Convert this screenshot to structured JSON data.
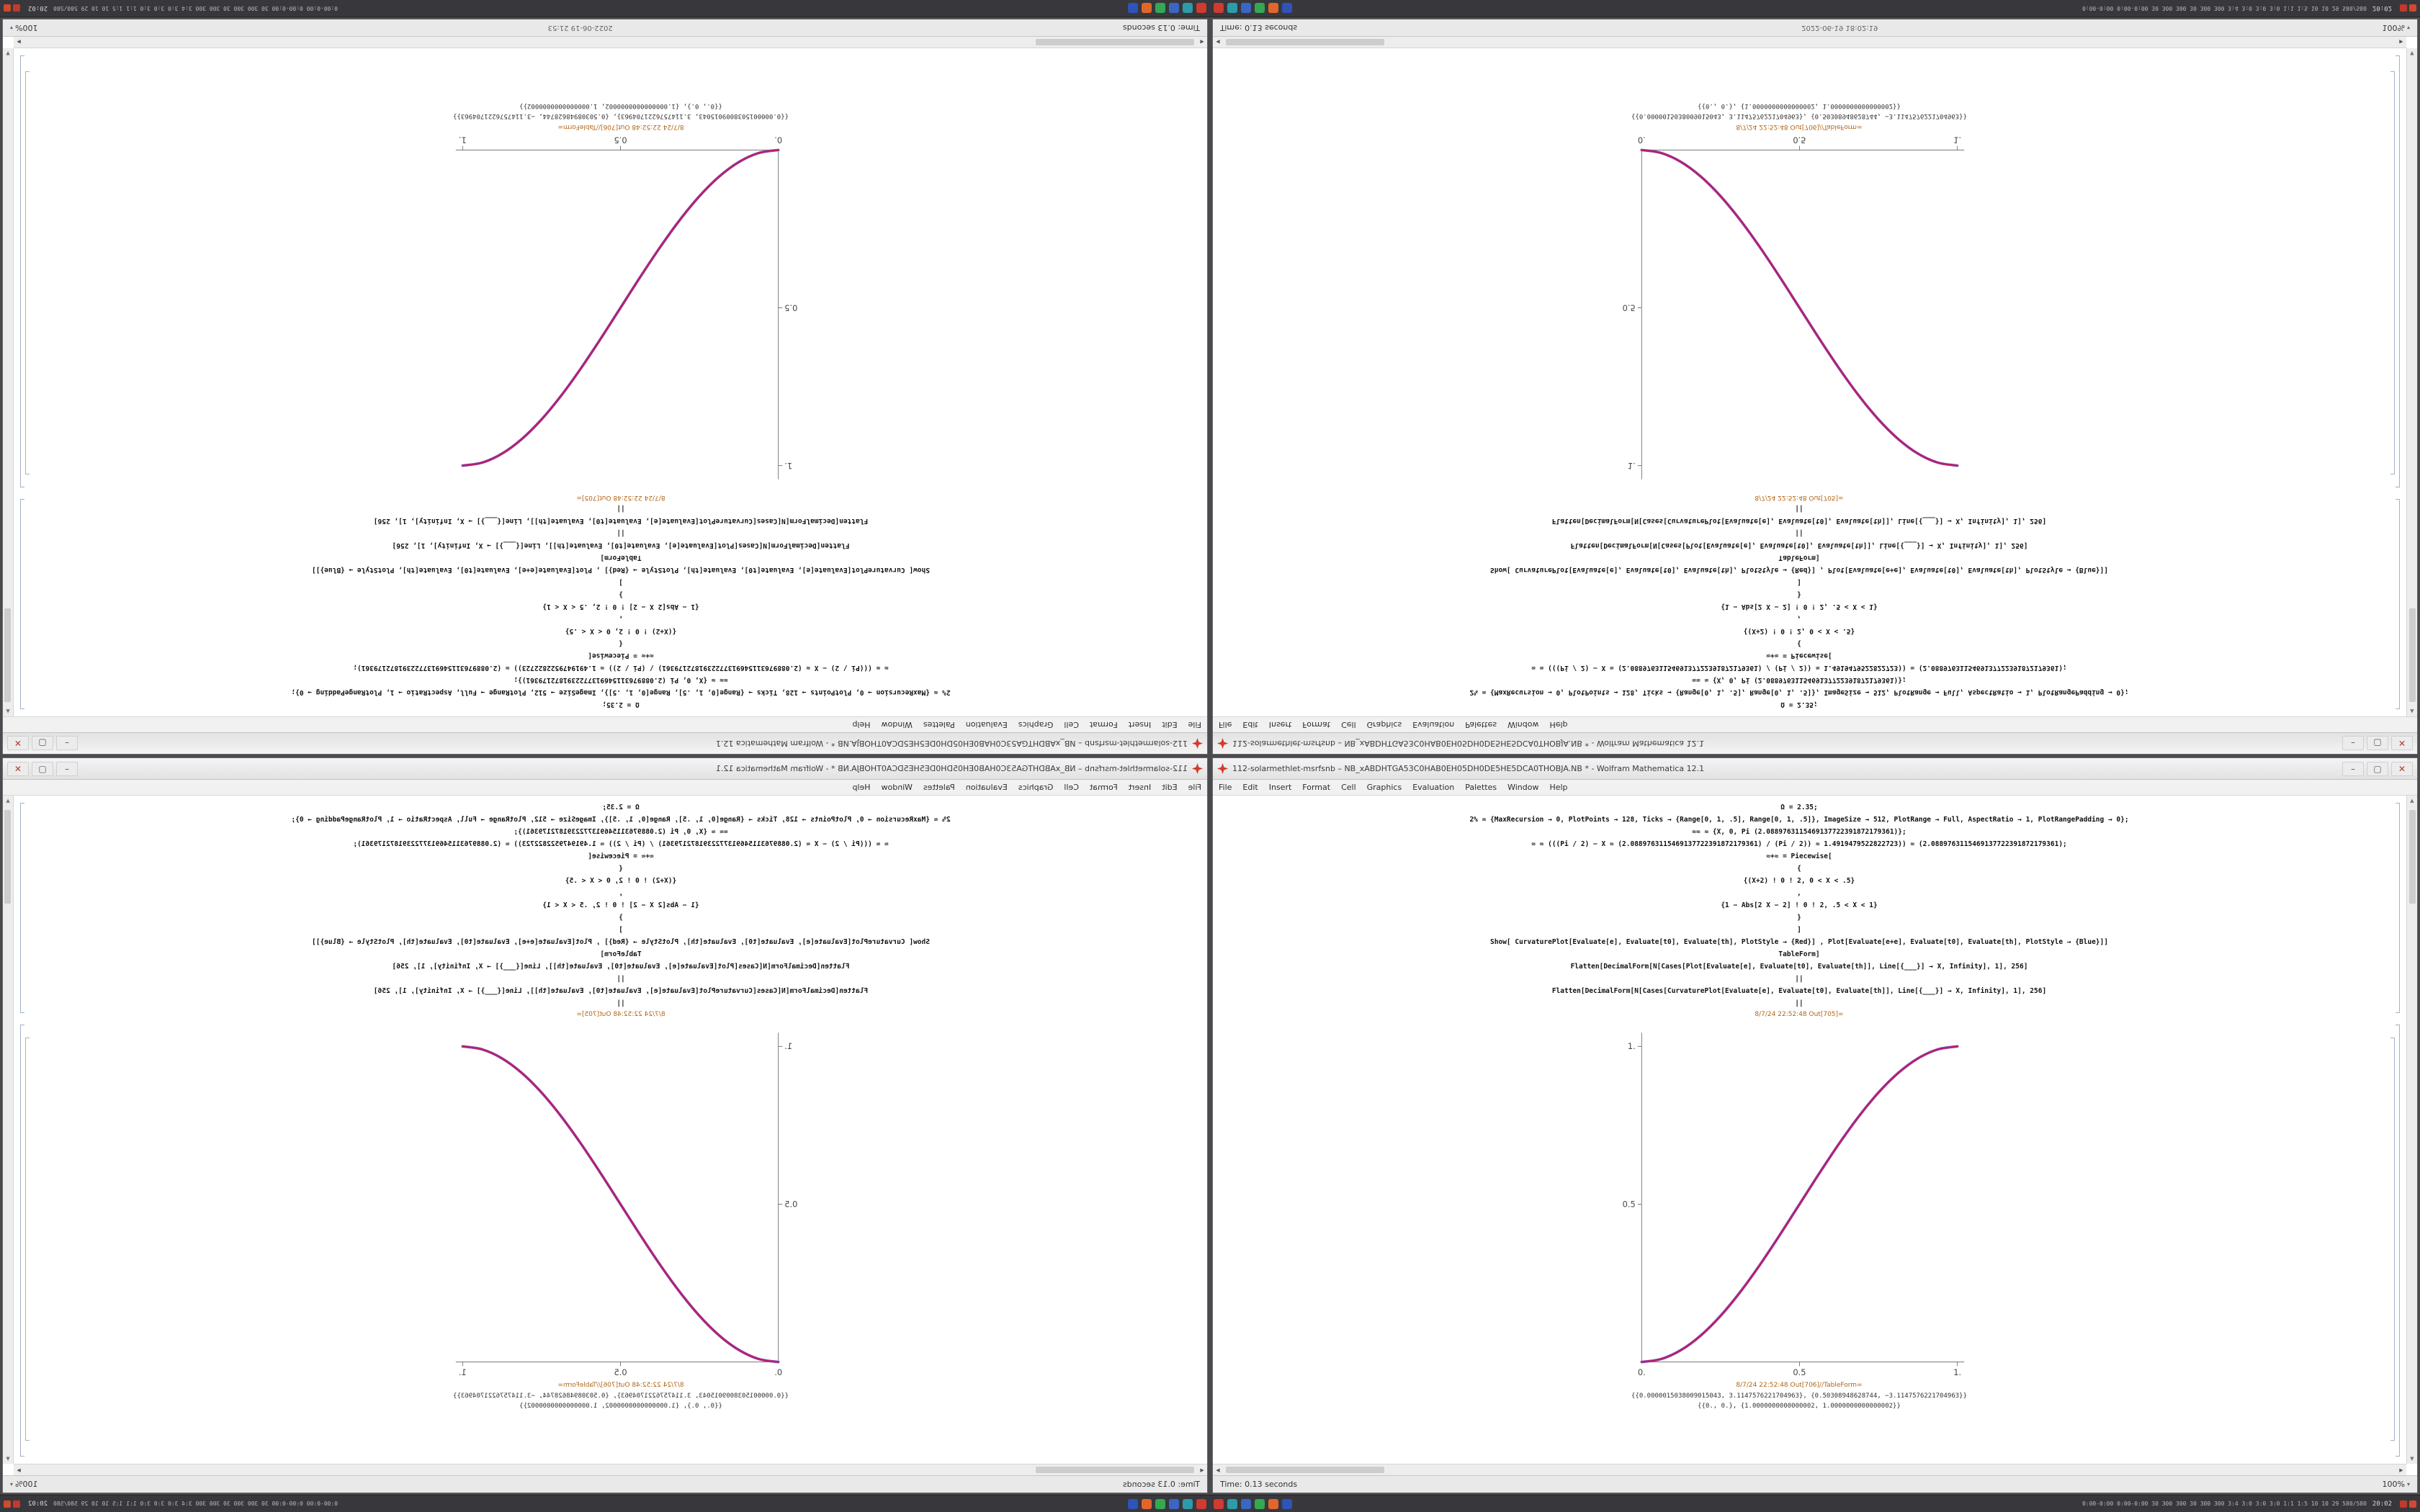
{
  "window": {
    "title": "112-solarmethlet-msrfsnb – NB_xABDHTGA53C0HAB0EH05DH0DE5HE5DCA0THOBJA.NB * - Wolfram Mathematica 12.1",
    "buttons": {
      "minimize": "–",
      "maximize": "▢",
      "close": "✕"
    },
    "menu": [
      "File",
      "Edit",
      "Insert",
      "Format",
      "Cell",
      "Graphics",
      "Evaluation",
      "Palettes",
      "Window",
      "Help"
    ],
    "code_lines": [
      "Ω = 2.35;",
      "2% ≈ {MaxRecursion → 0, PlotPoints → 128, Ticks → {Range[0, 1, .5], Range[0, 1, .5]}, ImageSize → 512, PlotRange → Full, AspectRatio → 1, PlotRangePadding → 0};",
      "≈≈ ≈ {X, 0, Pi (2.0889763115469137722391872179361)};",
      "≈ ≈ (((Pi / 2) − X ≈ (2.0889763115469137722391872179361) / (Pi / 2)) ≈ 1.4919479522822723)) ≈ (2.0889763115469137722391872179361);",
      "≈+≈ = Piecewise[",
      "{",
      "{(X+2) ! 0 ! 2, 0 < X < .5}",
      ",",
      "{1 − Abs[2 X − 2] ! 0 ! 2, .5 < X < 1}",
      "}",
      "]",
      "Show[  CurvaturePlot[Evaluate[e], Evaluate[t0], Evaluate[th], PlotStyle → {Red}]  ,  Plot[Evaluate[e+e], Evaluate[t0], Evaluate[th], PlotStyle → {Blue}]]",
      "TableForm]",
      "Flatten[DecimalForm[N[Cases[Plot[Evaluate[e], Evaluate[t0], Evaluate[th]], Line[{___}] → X, Infinity], 1], 256]",
      "||",
      "Flatten[DecimalForm[N[Cases[CurvaturePlot[Evaluate[e], Evaluate[t0], Evaluate[th]], Line[{___}] → X, Infinity], 1], 256]",
      "||"
    ],
    "out_label": "8/7/24 22:52:48 Out[705]=",
    "out_table_label": "8/7/24 22:52:48 Out[706]//TableForm=",
    "outputs": [
      "{{0.0000015038009015043, 3.1147576221704963}, {0.50308948628744, −3.1147576221704963}}",
      "{{0., 0.}, {1.0000000000000002, 1.0000000000000002}}"
    ],
    "status_left": "Time: 0.13 seconds",
    "status_zoom": "100%"
  },
  "quadrants": {
    "tl": {
      "status_center": "2022-06-19 21:53"
    },
    "tr": {
      "status_center": "2022-06-19 18:02:19"
    },
    "bl": {
      "status_center": ""
    },
    "br": {
      "status_center": ""
    }
  },
  "chart_data": {
    "type": "line",
    "title": "",
    "xlabel": "",
    "ylabel": "",
    "xlim": [
      0,
      1
    ],
    "ylim": [
      0,
      1
    ],
    "grid": false,
    "legend": false,
    "xticks": [
      "0.",
      "0.5",
      "1."
    ],
    "yticks": [
      "0.5",
      "1."
    ],
    "x": [
      0,
      0.0625,
      0.125,
      0.1875,
      0.25,
      0.3125,
      0.375,
      0.4375,
      0.5,
      0.5625,
      0.625,
      0.6875,
      0.75,
      0.8125,
      0.875,
      0.9375,
      1
    ],
    "series": [
      {
        "name": "CurvaturePlot[e] (PlotStyle Red)",
        "color": "#c2185b",
        "values": [
          0,
          0.0096,
          0.0381,
          0.0843,
          0.1464,
          0.2222,
          0.3087,
          0.4025,
          0.5,
          0.5975,
          0.6913,
          0.7778,
          0.8536,
          0.9157,
          0.9619,
          0.9904,
          1
        ]
      },
      {
        "name": "Plot[e+e] (PlotStyle Blue)",
        "color": "#8e44ad",
        "values": [
          0,
          0.0096,
          0.0381,
          0.0843,
          0.1464,
          0.2222,
          0.3087,
          0.4025,
          0.5,
          0.5975,
          0.6913,
          0.7778,
          0.8536,
          0.9157,
          0.9619,
          0.9904,
          1
        ]
      }
    ]
  },
  "taskbar": {
    "app_icons": [
      {
        "color": "#cf3b30"
      },
      {
        "color": "#2e9ba8"
      },
      {
        "color": "#3b66c4"
      },
      {
        "color": "#35a853"
      },
      {
        "color": "#e2662c"
      },
      {
        "color": "#2f53b8"
      }
    ],
    "right_text": "0:00-0:00  0:00-0:00  30 300 300  30 300 300  3:4 3:0 3:0 3:0  1:1 1:5  10 10 29  580/580",
    "clock": "20:02",
    "mini_icons": [
      {
        "color": "#c23a2c"
      },
      {
        "color": "#d04a30"
      }
    ]
  },
  "icons": {
    "up": "▲",
    "down": "▼",
    "left": "◀",
    "right": "▶",
    "chevron_down": "▾"
  }
}
